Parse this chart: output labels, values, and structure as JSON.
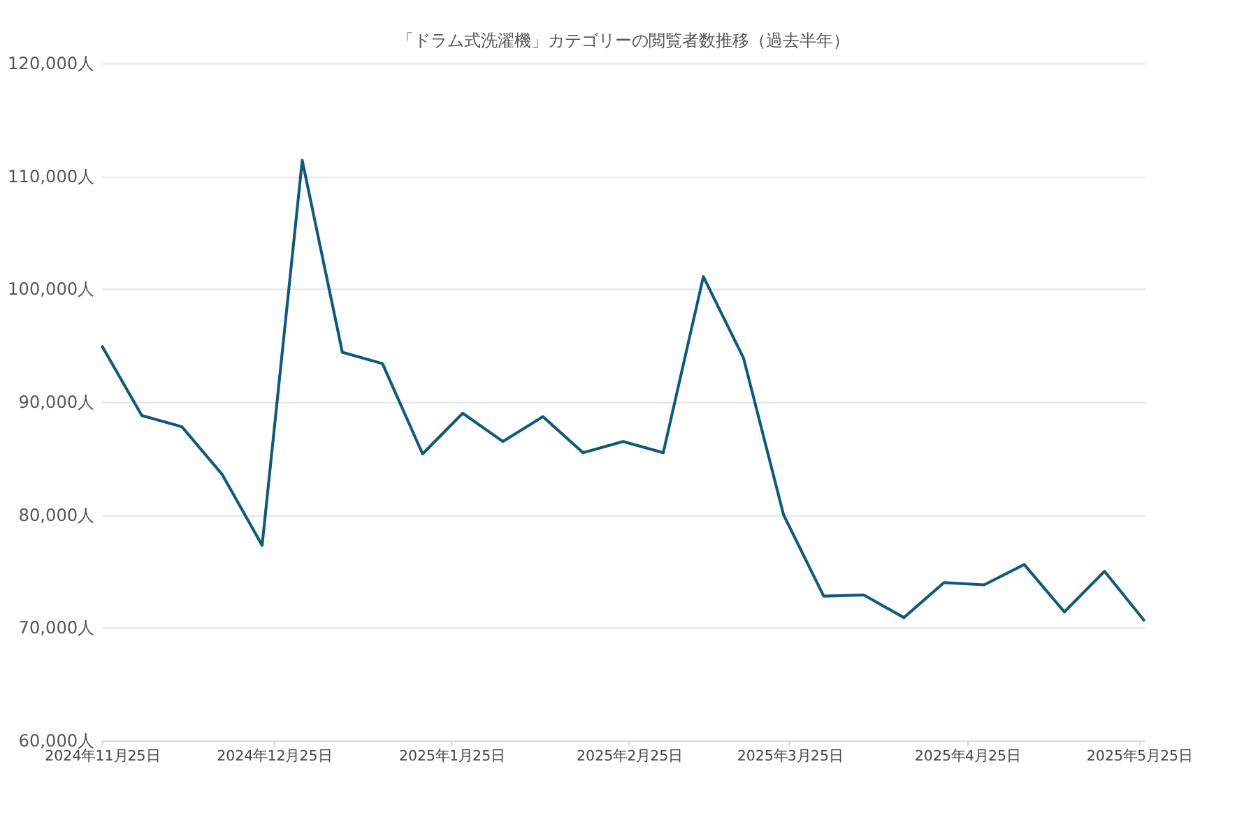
{
  "chart_data": {
    "type": "line",
    "title": "「ドラム式洗濯機」カテゴリーの閲覧者数推移（過去半年）",
    "x": [
      "2024-11-25",
      "2024-12-02",
      "2024-12-09",
      "2024-12-16",
      "2024-12-23",
      "2024-12-30",
      "2025-01-06",
      "2025-01-13",
      "2025-01-20",
      "2025-01-27",
      "2025-02-03",
      "2025-02-10",
      "2025-02-17",
      "2025-02-24",
      "2025-03-03",
      "2025-03-10",
      "2025-03-17",
      "2025-03-24",
      "2025-03-31",
      "2025-04-07",
      "2025-04-14",
      "2025-04-21",
      "2025-04-28",
      "2025-05-05",
      "2025-05-12",
      "2025-05-19",
      "2025-05-26"
    ],
    "series": [
      {
        "color": "#0f5a7a",
        "values": [
          95000,
          88800,
          87800,
          83600,
          77300,
          111400,
          94400,
          93400,
          85400,
          89000,
          86500,
          88700,
          85500,
          86500,
          85500,
          101100,
          93900,
          80000,
          72800,
          72900,
          70900,
          74000,
          73800,
          75600,
          71400,
          75000,
          70600
        ]
      }
    ],
    "xlim": [
      "2024-11-25",
      "2025-05-26"
    ],
    "xticks": [
      {
        "value": "2024-11-25",
        "label": "2024年11月25日"
      },
      {
        "value": "2024-12-25",
        "label": "2024年12月25日"
      },
      {
        "value": "2025-01-25",
        "label": "2025年1月25日"
      },
      {
        "value": "2025-02-25",
        "label": "2025年2月25日"
      },
      {
        "value": "2025-03-25",
        "label": "2025年3月25日"
      },
      {
        "value": "2025-04-25",
        "label": "2025年4月25日"
      },
      {
        "value": "2025-05-25",
        "label": "2025年5月25日"
      }
    ],
    "ylim": [
      60000,
      120000
    ],
    "yticks": [
      {
        "value": 60000,
        "label": "60,000人"
      },
      {
        "value": 70000,
        "label": "70,000人"
      },
      {
        "value": 80000,
        "label": "80,000人"
      },
      {
        "value": 90000,
        "label": "90,000人"
      },
      {
        "value": 100000,
        "label": "100,000人"
      },
      {
        "value": 110000,
        "label": "110,000人"
      },
      {
        "value": 120000,
        "label": "120,000人"
      }
    ],
    "grid": "y",
    "line_style": "solid",
    "marker": "none"
  }
}
